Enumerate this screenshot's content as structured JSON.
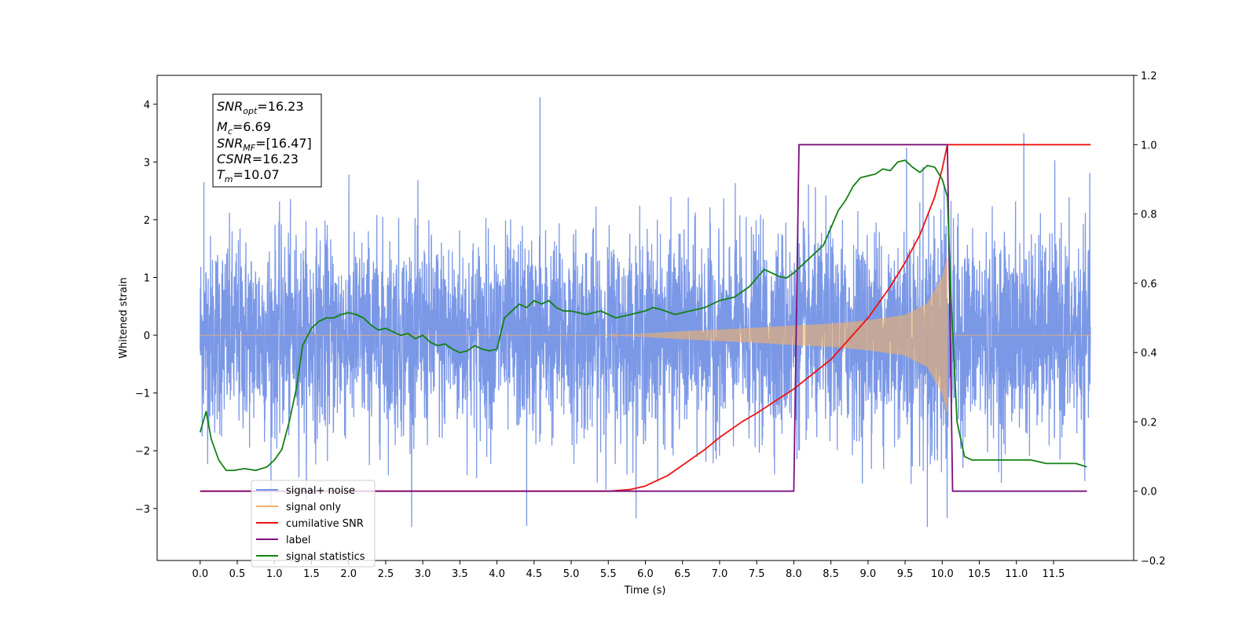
{
  "chart_data": {
    "type": "line",
    "xlabel": "Time (s)",
    "ylabel_left": "Whitened strain",
    "xlim": [
      -0.58,
      12.58
    ],
    "ylim_left": [
      -3.9,
      4.5
    ],
    "ylim_right": [
      -0.2,
      1.2
    ],
    "x_ticks": [
      0.0,
      0.5,
      1.0,
      1.5,
      2.0,
      2.5,
      3.0,
      3.5,
      4.0,
      4.5,
      5.0,
      5.5,
      6.0,
      6.5,
      7.0,
      7.5,
      8.0,
      8.5,
      9.0,
      9.5,
      10.0,
      10.5,
      11.0,
      11.5
    ],
    "x_tick_labels": [
      "0.0",
      "0.5",
      "1.0",
      "1.5",
      "2.0",
      "2.5",
      "3.0",
      "3.5",
      "4.0",
      "4.5",
      "5.0",
      "5.5",
      "6.0",
      "6.5",
      "7.0",
      "7.5",
      "8.0",
      "8.5",
      "9.0",
      "9.5",
      "10.0",
      "10.5",
      "11.0",
      "11.5"
    ],
    "y_left_ticks": [
      -3,
      -2,
      -1,
      0,
      1,
      2,
      3,
      4
    ],
    "y_left_tick_labels": [
      "−3",
      "−2",
      "−1",
      "0",
      "1",
      "2",
      "3",
      "4"
    ],
    "y_right_ticks": [
      -0.2,
      0.0,
      0.2,
      0.4,
      0.6,
      0.8,
      1.0,
      1.2
    ],
    "y_right_tick_labels": [
      "−0.2",
      "0.0",
      "0.2",
      "0.4",
      "0.6",
      "0.8",
      "1.0",
      "1.2"
    ],
    "grid": false,
    "legend_position": "lower-left",
    "annotation": {
      "snr_opt": {
        "sym": "SNR",
        "sub": "opt",
        "value": "=16.23"
      },
      "mc": {
        "sym": "M",
        "sub": "c",
        "value": "=6.69"
      },
      "snr_mf": {
        "sym": "SNR",
        "sub": "MF",
        "value": "=[16.47]"
      },
      "csnr": {
        "sym": "CSNR",
        "value": "=16.23"
      },
      "tm": {
        "sym": "T",
        "sub": "m",
        "value": "=10.07"
      }
    },
    "series": [
      {
        "name": "signal+ noise",
        "color": "#7492e6",
        "axis": "left",
        "x_range": [
          0.0,
          12.0
        ],
        "noise_sigma": 0.85,
        "noise_max": 4.12,
        "noise_min": -3.32
      },
      {
        "name": "signal only",
        "color": "#f2b068",
        "axis": "left",
        "x_range": [
          0.0,
          12.0
        ],
        "envelope_x": [
          5.5,
          6.0,
          6.5,
          7.0,
          7.5,
          8.0,
          8.5,
          9.0,
          9.5,
          9.8,
          10.0,
          10.07
        ],
        "envelope_y": [
          0.0,
          0.03,
          0.07,
          0.1,
          0.13,
          0.17,
          0.2,
          0.26,
          0.35,
          0.55,
          1.0,
          1.35
        ]
      },
      {
        "name": "cumilative SNR",
        "color": "#ee1111",
        "axis": "right",
        "x": [
          0.0,
          5.5,
          5.8,
          6.0,
          6.3,
          6.5,
          6.8,
          7.0,
          7.3,
          7.5,
          8.0,
          8.5,
          9.0,
          9.3,
          9.5,
          9.7,
          9.9,
          10.0,
          10.07,
          10.1,
          12.0
        ],
        "y": [
          0.0,
          0.0,
          0.005,
          0.015,
          0.045,
          0.075,
          0.12,
          0.155,
          0.2,
          0.225,
          0.295,
          0.38,
          0.5,
          0.59,
          0.66,
          0.74,
          0.85,
          0.93,
          1.0,
          1.0,
          1.0
        ]
      },
      {
        "name": "label",
        "color": "#7b0f7b",
        "axis": "right",
        "x": [
          0.0,
          8.0,
          8.07,
          10.07,
          10.14,
          11.95
        ],
        "y": [
          0.0,
          0.0,
          1.0,
          1.0,
          0.0,
          0.0
        ]
      },
      {
        "name": "signal statistics",
        "color": "#138013",
        "axis": "right",
        "x": [
          0.0,
          0.08,
          0.15,
          0.25,
          0.35,
          0.45,
          0.6,
          0.75,
          0.9,
          1.0,
          1.1,
          1.2,
          1.3,
          1.38,
          1.5,
          1.6,
          1.7,
          1.8,
          1.9,
          2.0,
          2.1,
          2.2,
          2.3,
          2.4,
          2.5,
          2.6,
          2.7,
          2.8,
          2.9,
          3.0,
          3.1,
          3.2,
          3.3,
          3.4,
          3.5,
          3.6,
          3.7,
          3.8,
          3.9,
          4.0,
          4.1,
          4.2,
          4.3,
          4.4,
          4.5,
          4.6,
          4.7,
          4.8,
          4.9,
          5.0,
          5.2,
          5.4,
          5.6,
          5.8,
          6.0,
          6.1,
          6.2,
          6.4,
          6.6,
          6.8,
          7.0,
          7.2,
          7.4,
          7.6,
          7.7,
          7.8,
          7.9,
          8.0,
          8.1,
          8.2,
          8.3,
          8.4,
          8.5,
          8.6,
          8.7,
          8.8,
          8.9,
          9.0,
          9.1,
          9.2,
          9.3,
          9.4,
          9.5,
          9.6,
          9.7,
          9.8,
          9.9,
          10.0,
          10.07,
          10.12,
          10.2,
          10.3,
          10.4,
          10.6,
          10.8,
          11.0,
          11.2,
          11.4,
          11.6,
          11.8,
          11.95
        ],
        "y": [
          0.17,
          0.23,
          0.15,
          0.09,
          0.06,
          0.06,
          0.065,
          0.06,
          0.07,
          0.09,
          0.12,
          0.2,
          0.3,
          0.42,
          0.47,
          0.49,
          0.5,
          0.5,
          0.51,
          0.515,
          0.51,
          0.5,
          0.48,
          0.465,
          0.47,
          0.46,
          0.45,
          0.455,
          0.44,
          0.45,
          0.43,
          0.42,
          0.425,
          0.41,
          0.4,
          0.405,
          0.42,
          0.41,
          0.405,
          0.41,
          0.5,
          0.52,
          0.54,
          0.53,
          0.55,
          0.54,
          0.55,
          0.53,
          0.52,
          0.52,
          0.51,
          0.52,
          0.5,
          0.51,
          0.52,
          0.53,
          0.525,
          0.51,
          0.52,
          0.53,
          0.55,
          0.56,
          0.59,
          0.64,
          0.63,
          0.62,
          0.615,
          0.63,
          0.65,
          0.67,
          0.69,
          0.71,
          0.76,
          0.81,
          0.84,
          0.88,
          0.905,
          0.91,
          0.915,
          0.93,
          0.925,
          0.95,
          0.955,
          0.935,
          0.92,
          0.94,
          0.935,
          0.9,
          0.85,
          0.55,
          0.2,
          0.1,
          0.09,
          0.09,
          0.09,
          0.09,
          0.09,
          0.08,
          0.08,
          0.08,
          0.07
        ]
      }
    ]
  }
}
